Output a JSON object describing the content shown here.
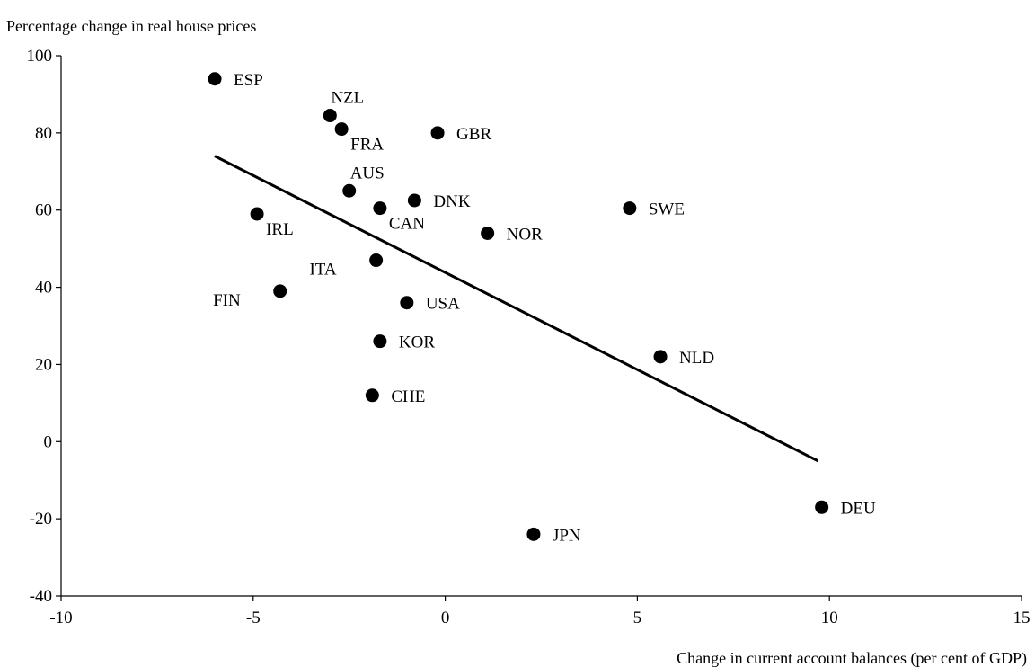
{
  "chart_data": {
    "type": "scatter",
    "ylabel": "Percentage change in real house prices",
    "xlabel": "Change in current account balances (per cent of GDP)",
    "xlim": [
      -10,
      15
    ],
    "ylim": [
      -40,
      100
    ],
    "xticks": [
      -10,
      -5,
      0,
      5,
      10,
      15
    ],
    "yticks": [
      -40,
      -20,
      0,
      20,
      40,
      60,
      80,
      100
    ],
    "grid": false,
    "points": [
      {
        "label": "ESP",
        "x": -6.0,
        "y": 94,
        "label_pos": "right"
      },
      {
        "label": "NZL",
        "x": -3.0,
        "y": 84.5,
        "label_pos": "above-right"
      },
      {
        "label": "FRA",
        "x": -2.7,
        "y": 81,
        "label_pos": "below-right"
      },
      {
        "label": "GBR",
        "x": -0.2,
        "y": 80,
        "label_pos": "right"
      },
      {
        "label": "AUS",
        "x": -2.5,
        "y": 65,
        "label_pos": "above-right"
      },
      {
        "label": "DNK",
        "x": -0.8,
        "y": 62.5,
        "label_pos": "right"
      },
      {
        "label": "CAN",
        "x": -1.7,
        "y": 60.5,
        "label_pos": "below-right"
      },
      {
        "label": "IRL",
        "x": -4.9,
        "y": 59,
        "label_pos": "below-right"
      },
      {
        "label": "SWE",
        "x": 4.8,
        "y": 60.5,
        "label_pos": "right"
      },
      {
        "label": "NOR",
        "x": 1.1,
        "y": 54,
        "label_pos": "right"
      },
      {
        "label": "ITA",
        "x": -1.8,
        "y": 47,
        "label_pos": "below-left"
      },
      {
        "label": "FIN",
        "x": -4.3,
        "y": 39,
        "label_pos": "below-left"
      },
      {
        "label": "USA",
        "x": -1.0,
        "y": 36,
        "label_pos": "right"
      },
      {
        "label": "KOR",
        "x": -1.7,
        "y": 26,
        "label_pos": "right"
      },
      {
        "label": "NLD",
        "x": 5.6,
        "y": 22,
        "label_pos": "right"
      },
      {
        "label": "CHE",
        "x": -1.9,
        "y": 12,
        "label_pos": "right"
      },
      {
        "label": "DEU",
        "x": 9.8,
        "y": -17,
        "label_pos": "right"
      },
      {
        "label": "JPN",
        "x": 2.3,
        "y": -24,
        "label_pos": "right"
      }
    ],
    "trendline": {
      "x": [
        -6.0,
        9.7
      ],
      "y": [
        74,
        -5
      ]
    },
    "colors": {
      "marker": "#000000",
      "line": "#000000",
      "axis": "#000000"
    }
  }
}
